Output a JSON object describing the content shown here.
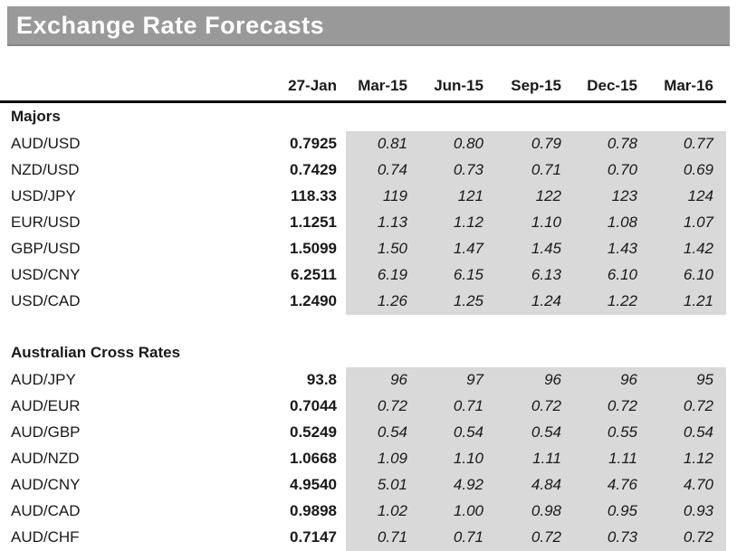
{
  "title": "Exchange Rate Forecasts",
  "chart_data": {
    "type": "table",
    "title": "Exchange Rate Forecasts",
    "columns": [
      "",
      "27-Jan",
      "Mar-15",
      "Jun-15",
      "Sep-15",
      "Dec-15",
      "Mar-16"
    ],
    "sections": [
      {
        "label": "Majors",
        "rows": [
          {
            "pair": "AUD/USD",
            "spot": "0.7925",
            "forecasts": [
              "0.81",
              "0.80",
              "0.79",
              "0.78",
              "0.77"
            ]
          },
          {
            "pair": "NZD/USD",
            "spot": "0.7429",
            "forecasts": [
              "0.74",
              "0.73",
              "0.71",
              "0.70",
              "0.69"
            ]
          },
          {
            "pair": "USD/JPY",
            "spot": "118.33",
            "forecasts": [
              "119",
              "121",
              "122",
              "123",
              "124"
            ]
          },
          {
            "pair": "EUR/USD",
            "spot": "1.1251",
            "forecasts": [
              "1.13",
              "1.12",
              "1.10",
              "1.08",
              "1.07"
            ]
          },
          {
            "pair": "GBP/USD",
            "spot": "1.5099",
            "forecasts": [
              "1.50",
              "1.47",
              "1.45",
              "1.43",
              "1.42"
            ]
          },
          {
            "pair": "USD/CNY",
            "spot": "6.2511",
            "forecasts": [
              "6.19",
              "6.15",
              "6.13",
              "6.10",
              "6.10"
            ]
          },
          {
            "pair": "USD/CAD",
            "spot": "1.2490",
            "forecasts": [
              "1.26",
              "1.25",
              "1.24",
              "1.22",
              "1.21"
            ]
          }
        ]
      },
      {
        "label": "Australian Cross Rates",
        "rows": [
          {
            "pair": "AUD/JPY",
            "spot": "93.8",
            "forecasts": [
              "96",
              "97",
              "96",
              "96",
              "95"
            ]
          },
          {
            "pair": "AUD/EUR",
            "spot": "0.7044",
            "forecasts": [
              "0.72",
              "0.71",
              "0.72",
              "0.72",
              "0.72"
            ]
          },
          {
            "pair": "AUD/GBP",
            "spot": "0.5249",
            "forecasts": [
              "0.54",
              "0.54",
              "0.54",
              "0.55",
              "0.54"
            ]
          },
          {
            "pair": "AUD/NZD",
            "spot": "1.0668",
            "forecasts": [
              "1.09",
              "1.10",
              "1.11",
              "1.11",
              "1.12"
            ]
          },
          {
            "pair": "AUD/CNY",
            "spot": "4.9540",
            "forecasts": [
              "5.01",
              "4.92",
              "4.84",
              "4.76",
              "4.70"
            ]
          },
          {
            "pair": "AUD/CAD",
            "spot": "0.9898",
            "forecasts": [
              "1.02",
              "1.00",
              "0.98",
              "0.95",
              "0.93"
            ]
          },
          {
            "pair": "AUD/CHF",
            "spot": "0.7147",
            "forecasts": [
              "0.71",
              "0.71",
              "0.72",
              "0.73",
              "0.72"
            ]
          }
        ]
      }
    ]
  },
  "colors": {
    "title_bar": "#999999",
    "title_text": "#ffffff",
    "shaded_cells": "#d9d9d9",
    "rule": "#000000",
    "body_text": "#191919"
  }
}
